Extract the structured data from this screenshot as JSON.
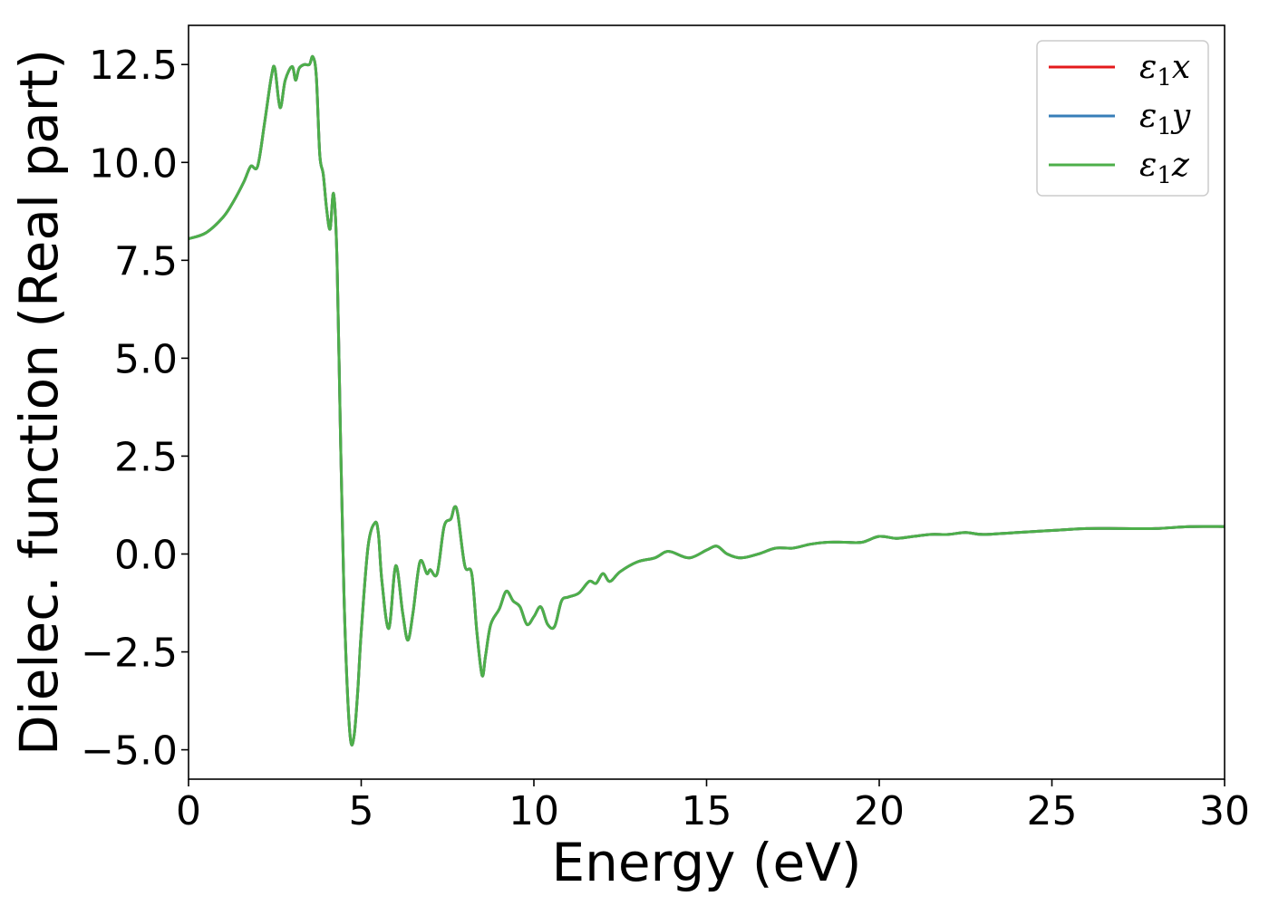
{
  "chart_data": {
    "type": "line",
    "xlabel": "Energy (eV)",
    "ylabel": "Dielec. function (Real part)",
    "xlim": [
      0,
      30
    ],
    "ylim": [
      -5.75,
      13.5
    ],
    "xticks": [
      0,
      5,
      10,
      15,
      20,
      25,
      30
    ],
    "xtick_labels": [
      "0",
      "5",
      "10",
      "15",
      "20",
      "25",
      "30"
    ],
    "yticks": [
      -5.0,
      -2.5,
      0.0,
      2.5,
      5.0,
      7.5,
      10.0,
      12.5
    ],
    "ytick_labels": [
      "−5.0",
      "−2.5",
      "0.0",
      "2.5",
      "5.0",
      "7.5",
      "10.0",
      "12.5"
    ],
    "grid": false,
    "legend_position": "top-right",
    "x": [
      0,
      0.5,
      1.0,
      1.3,
      1.6,
      1.8,
      2.0,
      2.2,
      2.4,
      2.5,
      2.65,
      2.8,
      3.0,
      3.1,
      3.2,
      3.35,
      3.5,
      3.6,
      3.7,
      3.8,
      3.9,
      4.0,
      4.1,
      4.2,
      4.3,
      4.4,
      4.5,
      4.6,
      4.7,
      4.8,
      4.9,
      5.0,
      5.2,
      5.4,
      5.5,
      5.6,
      5.8,
      6.0,
      6.2,
      6.35,
      6.5,
      6.7,
      6.9,
      7.0,
      7.2,
      7.4,
      7.6,
      7.7,
      7.8,
      8.0,
      8.2,
      8.35,
      8.5,
      8.6,
      8.75,
      9.0,
      9.2,
      9.4,
      9.6,
      9.8,
      10.0,
      10.2,
      10.4,
      10.6,
      10.8,
      11.0,
      11.3,
      11.6,
      11.8,
      12.0,
      12.2,
      12.5,
      13.0,
      13.5,
      13.8,
      14.0,
      14.5,
      15.0,
      15.3,
      15.6,
      16.0,
      16.5,
      17.0,
      17.5,
      18.0,
      18.5,
      19.0,
      19.5,
      20.0,
      20.5,
      21.0,
      21.5,
      22.0,
      22.5,
      23.0,
      24.0,
      25.0,
      26.0,
      27.0,
      28.0,
      29.0,
      30.0
    ],
    "series": [
      {
        "name": "ε₁x",
        "color": "#e41a1c",
        "values": [
          8.05,
          8.2,
          8.6,
          9.0,
          9.5,
          9.9,
          9.9,
          11.0,
          12.2,
          12.4,
          11.4,
          12.1,
          12.45,
          12.1,
          12.4,
          12.5,
          12.5,
          12.7,
          12.2,
          10.2,
          9.7,
          8.8,
          8.3,
          9.2,
          7.5,
          3.0,
          -1.0,
          -3.5,
          -4.8,
          -4.6,
          -3.5,
          -2.0,
          0.2,
          0.8,
          0.5,
          -0.7,
          -1.9,
          -0.3,
          -1.5,
          -2.2,
          -1.5,
          -0.2,
          -0.5,
          -0.4,
          -0.5,
          0.7,
          0.9,
          1.2,
          1.0,
          -0.3,
          -0.5,
          -2.0,
          -3.1,
          -2.6,
          -1.8,
          -1.4,
          -0.95,
          -1.2,
          -1.35,
          -1.8,
          -1.6,
          -1.35,
          -1.8,
          -1.85,
          -1.2,
          -1.1,
          -1.0,
          -0.7,
          -0.75,
          -0.5,
          -0.7,
          -0.45,
          -0.2,
          -0.1,
          0.05,
          0.05,
          -0.1,
          0.1,
          0.2,
          0.0,
          -0.1,
          0.0,
          0.15,
          0.15,
          0.25,
          0.3,
          0.3,
          0.3,
          0.45,
          0.4,
          0.45,
          0.5,
          0.5,
          0.55,
          0.5,
          0.55,
          0.6,
          0.65,
          0.65,
          0.65,
          0.7,
          0.7
        ]
      },
      {
        "name": "ε₁y",
        "color": "#377eb8",
        "values": [
          8.05,
          8.2,
          8.6,
          9.0,
          9.5,
          9.9,
          9.9,
          11.0,
          12.2,
          12.4,
          11.4,
          12.1,
          12.45,
          12.1,
          12.4,
          12.5,
          12.5,
          12.7,
          12.2,
          10.2,
          9.7,
          8.8,
          8.3,
          9.2,
          7.5,
          3.0,
          -1.0,
          -3.5,
          -4.8,
          -4.6,
          -3.5,
          -2.0,
          0.2,
          0.8,
          0.5,
          -0.7,
          -1.9,
          -0.3,
          -1.5,
          -2.2,
          -1.5,
          -0.2,
          -0.5,
          -0.4,
          -0.5,
          0.7,
          0.9,
          1.2,
          1.0,
          -0.3,
          -0.5,
          -2.0,
          -3.1,
          -2.6,
          -1.8,
          -1.4,
          -0.95,
          -1.2,
          -1.35,
          -1.8,
          -1.6,
          -1.35,
          -1.8,
          -1.85,
          -1.2,
          -1.1,
          -1.0,
          -0.7,
          -0.75,
          -0.5,
          -0.7,
          -0.45,
          -0.2,
          -0.1,
          0.05,
          0.05,
          -0.1,
          0.1,
          0.2,
          0.0,
          -0.1,
          0.0,
          0.15,
          0.15,
          0.25,
          0.3,
          0.3,
          0.3,
          0.45,
          0.4,
          0.45,
          0.5,
          0.5,
          0.55,
          0.5,
          0.55,
          0.6,
          0.65,
          0.65,
          0.65,
          0.7,
          0.7
        ]
      },
      {
        "name": "ε₁z",
        "color": "#4daf4a",
        "values": [
          8.05,
          8.2,
          8.6,
          9.0,
          9.5,
          9.9,
          9.9,
          11.0,
          12.2,
          12.4,
          11.4,
          12.1,
          12.45,
          12.1,
          12.4,
          12.5,
          12.5,
          12.7,
          12.2,
          10.2,
          9.7,
          8.8,
          8.3,
          9.2,
          7.5,
          3.0,
          -1.0,
          -3.5,
          -4.8,
          -4.6,
          -3.5,
          -2.0,
          0.2,
          0.8,
          0.5,
          -0.7,
          -1.9,
          -0.3,
          -1.5,
          -2.2,
          -1.5,
          -0.2,
          -0.5,
          -0.4,
          -0.5,
          0.7,
          0.9,
          1.2,
          1.0,
          -0.3,
          -0.5,
          -2.0,
          -3.1,
          -2.6,
          -1.8,
          -1.4,
          -0.95,
          -1.2,
          -1.35,
          -1.8,
          -1.6,
          -1.35,
          -1.8,
          -1.85,
          -1.2,
          -1.1,
          -1.0,
          -0.7,
          -0.75,
          -0.5,
          -0.7,
          -0.45,
          -0.2,
          -0.1,
          0.05,
          0.05,
          -0.1,
          0.1,
          0.2,
          0.0,
          -0.1,
          0.0,
          0.15,
          0.15,
          0.25,
          0.3,
          0.3,
          0.3,
          0.45,
          0.4,
          0.45,
          0.5,
          0.5,
          0.55,
          0.5,
          0.55,
          0.6,
          0.65,
          0.65,
          0.65,
          0.7,
          0.7
        ]
      }
    ],
    "legend": [
      {
        "base": "ε",
        "sub": "1",
        "axis": "x"
      },
      {
        "base": "ε",
        "sub": "1",
        "axis": "y"
      },
      {
        "base": "ε",
        "sub": "1",
        "axis": "z"
      }
    ]
  }
}
